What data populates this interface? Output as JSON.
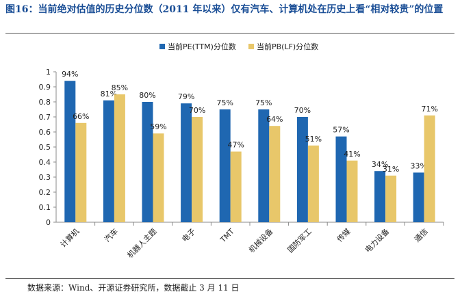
{
  "title": "图16：当前绝对估值的历史分位数（2011 年以来）仅有汽车、计算机处在历史上看“相对较贵”的位置",
  "source": "数据来源：Wind、开源证券研究所，数据截止 3 月 11 日",
  "colors": {
    "pe": "#1f67b1",
    "pb": "#e8c76a",
    "axis": "#888888",
    "title": "#1a4e96"
  },
  "chart_data": {
    "type": "bar",
    "categories": [
      "计算机",
      "汽车",
      "机器人主题",
      "电子",
      "TMT",
      "机械设备",
      "国防军工",
      "传媒",
      "电力设备",
      "通信"
    ],
    "series": [
      {
        "name": "当前PE(TTM)分位数",
        "values": [
          0.94,
          0.81,
          0.8,
          0.79,
          0.75,
          0.75,
          0.7,
          0.57,
          0.34,
          0.33
        ],
        "labels": [
          "94%",
          "81%",
          "80%",
          "79%",
          "75%",
          "75%",
          "70%",
          "57%",
          "34%",
          "33%"
        ]
      },
      {
        "name": "当前PB(LF)分位数",
        "values": [
          0.66,
          0.85,
          0.59,
          0.7,
          0.47,
          0.64,
          0.51,
          0.41,
          0.31,
          0.71
        ],
        "labels": [
          "66%",
          "85%",
          "59%",
          "70%",
          "47%",
          "64%",
          "51%",
          "41%",
          "31%",
          "71%"
        ]
      }
    ],
    "ylim": [
      0,
      1
    ],
    "yticks": [
      "0",
      "0.1",
      "0.2",
      "0.3",
      "0.4",
      "0.5",
      "0.6",
      "0.7",
      "0.8",
      "0.9",
      "1"
    ],
    "legend": "top-center",
    "grid": false
  }
}
